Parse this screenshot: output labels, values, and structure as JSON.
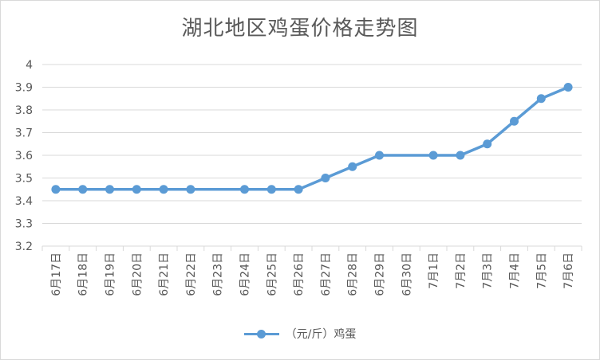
{
  "chart_data": {
    "type": "line",
    "title": "湖北地区鸡蛋价格走势图",
    "categories": [
      "6月17日",
      "6月18日",
      "6月19日",
      "6月20日",
      "6月21日",
      "6月22日",
      "6月23日",
      "6月24日",
      "6月25日",
      "6月26日",
      "6月27日",
      "6月28日",
      "6月29日",
      "6月30日",
      "7月1日",
      "7月2日",
      "7月3日",
      "7月4日",
      "7月5日",
      "7月6日"
    ],
    "series": [
      {
        "name": "（元/斤）鸡蛋",
        "color": "#5b9bd5",
        "values": [
          3.45,
          3.45,
          3.45,
          3.45,
          3.45,
          3.45,
          null,
          3.45,
          3.45,
          3.45,
          3.5,
          3.55,
          3.6,
          null,
          3.6,
          3.6,
          3.65,
          3.75,
          3.85,
          3.9
        ]
      }
    ],
    "y_ticks": [
      "3.2",
      "3.3",
      "3.4",
      "3.5",
      "3.6",
      "3.7",
      "3.8",
      "3.9",
      "4"
    ],
    "ylim": [
      3.2,
      4.0
    ],
    "grid": true,
    "legend_position": "bottom"
  }
}
